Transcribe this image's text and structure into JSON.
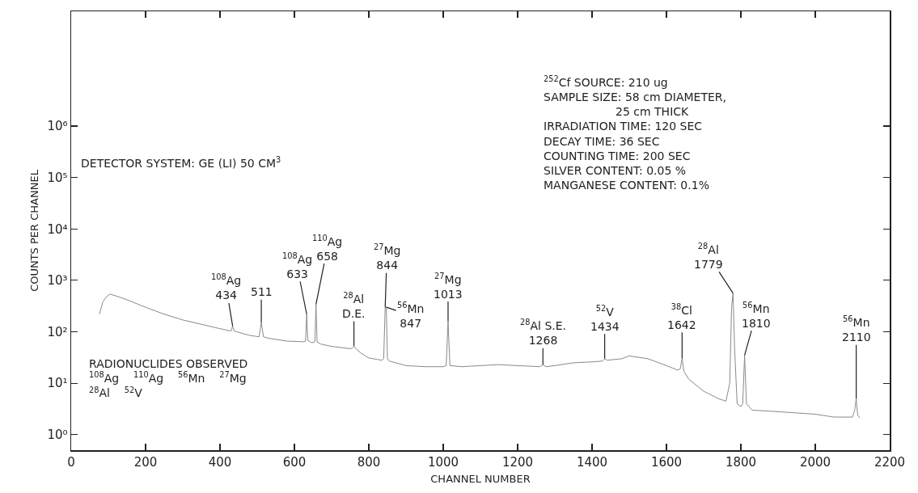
{
  "chart_data": {
    "type": "line",
    "xlabel": "CHANNEL NUMBER",
    "ylabel": "COUNTS PER CHANNEL",
    "log": "y",
    "grid": false,
    "marker": "none",
    "line_style": "solid",
    "xlim": [
      0,
      2200
    ],
    "xticks": [
      0,
      200,
      400,
      600,
      800,
      1000,
      1200,
      1400,
      1600,
      1800,
      2000,
      2200
    ],
    "ylim": [
      0.5,
      170000000
    ],
    "yticks": [
      {
        "value": 1,
        "label": "10⁰"
      },
      {
        "value": 10,
        "label": "10¹"
      },
      {
        "value": 100,
        "label": "10²"
      },
      {
        "value": 1000,
        "label": "10³"
      },
      {
        "value": 10000,
        "label": "10⁴"
      },
      {
        "value": 100000,
        "label": "10⁵"
      },
      {
        "value": 1000000,
        "label": "10⁶"
      }
    ],
    "series": [
      {
        "color": "#8a8a8a",
        "x": [
          76,
          85,
          95,
          104,
          120,
          150,
          200,
          250,
          300,
          350,
          400,
          425,
          430,
          434,
          438,
          445,
          480,
          505,
          511,
          517,
          530,
          580,
          600,
          625,
          630,
          633,
          636,
          645,
          652,
          655,
          658,
          661,
          670,
          700,
          750,
          755,
          760,
          765,
          780,
          800,
          835,
          840,
          844,
          847,
          850,
          855,
          900,
          950,
          1000,
          1008,
          1013,
          1018,
          1050,
          1100,
          1150,
          1200,
          1260,
          1268,
          1276,
          1300,
          1350,
          1400,
          1428,
          1434,
          1440,
          1480,
          1500,
          1550,
          1600,
          1630,
          1637,
          1642,
          1647,
          1660,
          1700,
          1740,
          1760,
          1770,
          1775,
          1779,
          1783,
          1790,
          1800,
          1805,
          1810,
          1815,
          1830,
          1900,
          2000,
          2050,
          2100,
          2106,
          2110,
          2114,
          2120
        ],
        "values": [
          220,
          380,
          480,
          540,
          500,
          420,
          300,
          220,
          170,
          140,
          115,
          105,
          104,
          130,
          104,
          100,
          85,
          80,
          150,
          80,
          75,
          66,
          65,
          64,
          66,
          220,
          68,
          62,
          62,
          64,
          340,
          63,
          58,
          52,
          47,
          48,
          53,
          47,
          38,
          31,
          28,
          30,
          300,
          300,
          30,
          27,
          22,
          21,
          21,
          22,
          160,
          22,
          21,
          22,
          23,
          22,
          21,
          23,
          21,
          22,
          25,
          26,
          27,
          30,
          28,
          30,
          34,
          30,
          22,
          18,
          19,
          30,
          17,
          12,
          7,
          5,
          4.5,
          10,
          300,
          560,
          50,
          4,
          3.5,
          4,
          35,
          4,
          3,
          2.8,
          2.5,
          2.2,
          2.2,
          3,
          5,
          2.4,
          2.1
        ]
      }
    ],
    "annotations": [
      {
        "text": "$^{108}$Ag\n434",
        "x": 434,
        "y": 130
      },
      {
        "text": "511",
        "x": 511,
        "y": 150
      },
      {
        "text": "$^{108}$Ag\n633",
        "x": 633,
        "y": 220
      },
      {
        "text": "$^{110}$Ag\n658",
        "x": 658,
        "y": 340
      },
      {
        "text": "$^{28}$Al\nD.E.",
        "x": 760,
        "y": 53
      },
      {
        "text": "$^{27}$Mg\n844",
        "x": 844,
        "y": 300
      },
      {
        "text": "$^{56}$Mn\n847",
        "x": 847,
        "y": 300
      },
      {
        "text": "$^{27}$Mg\n1013",
        "x": 1013,
        "y": 160
      },
      {
        "text": "$^{28}$Al S.E.\n1268",
        "x": 1268,
        "y": 23
      },
      {
        "text": "$^{52}$V\n1434",
        "x": 1434,
        "y": 30
      },
      {
        "text": "$^{38}$Cl\n1642",
        "x": 1642,
        "y": 30
      },
      {
        "text": "$^{28}$Al\n1779",
        "x": 1779,
        "y": 560
      },
      {
        "text": "$^{56}$Mn\n1810",
        "x": 1810,
        "y": 35
      },
      {
        "text": "$^{56}$Mn\n2110",
        "x": 2110,
        "y": 5
      },
      "DETECTOR SYSTEM: GE (LI) 50 CM$^{3}$",
      "$^{252}$Cf SOURCE: 210 ug\nSAMPLE SIZE: 58 cm DIAMETER,\n                    25 cm THICK\nIRRADIATION TIME: 120 SEC\nDECAY TIME: 36 SEC\nCOUNTING TIME: 200 SEC\nSILVER CONTENT: 0.05 %\nMANGANESE CONTENT: 0.1%",
      "RADIONUCLIDES OBSERVED\n$^{108}$Ag    $^{110}$Ag    $^{56}$Mn    $^{27}$Mg\n$^{28}$Al    $^{52}$V"
    ]
  }
}
